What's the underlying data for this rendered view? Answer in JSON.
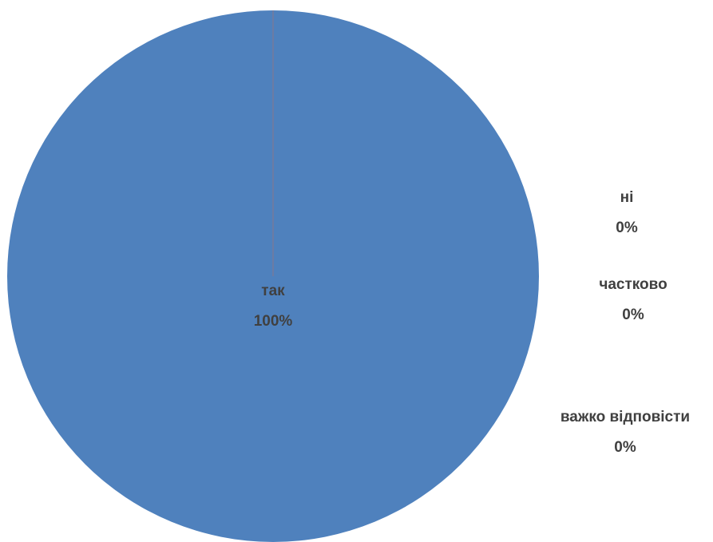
{
  "chart_data": {
    "type": "pie",
    "slices": [
      {
        "label": "так",
        "value": 100,
        "value_label": "100%",
        "color": "#4F81BD"
      },
      {
        "label": "ні",
        "value": 0,
        "value_label": "0%",
        "color": "#C0504D"
      },
      {
        "label": "частково",
        "value": 0,
        "value_label": "0%",
        "color": "#9BBB59"
      },
      {
        "label": "важко відповісти",
        "value": 0,
        "value_label": "0%",
        "color": "#8064A2"
      }
    ],
    "label_color": "#404040",
    "legend": "none"
  }
}
